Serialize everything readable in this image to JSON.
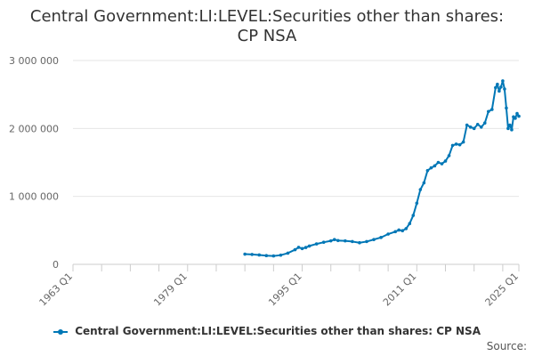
{
  "chart_data": {
    "type": "line",
    "title_line1": "Central Government:LI:LEVEL:Securities other than shares:",
    "title_line2": "CP NSA",
    "xlabel": "",
    "ylabel": "",
    "x_axis_labels": [
      "1963 Q1",
      "1979 Q1",
      "1995 Q1",
      "2011 Q1",
      "2025 Q1"
    ],
    "x_axis_label_years": [
      1963,
      1979,
      1995,
      2011,
      2025
    ],
    "xlim": [
      1963,
      2025.25
    ],
    "ylim": [
      0,
      3000000
    ],
    "y_ticks": [
      0,
      1000000,
      2000000,
      3000000
    ],
    "y_tick_labels": [
      "0",
      "1 000 000",
      "2 000 000",
      "3 000 000"
    ],
    "grid": "horizontal",
    "legend_position": "bottom-center",
    "series": [
      {
        "name": "Central Government:LI:LEVEL:Securities other than shares: CP NSA",
        "color": "#0077b6",
        "points": [
          [
            1987.0,
            150000
          ],
          [
            1988.0,
            145000
          ],
          [
            1989.0,
            138000
          ],
          [
            1990.0,
            128000
          ],
          [
            1991.0,
            123000
          ],
          [
            1992.0,
            135000
          ],
          [
            1993.0,
            165000
          ],
          [
            1994.0,
            215000
          ],
          [
            1994.5,
            250000
          ],
          [
            1995.0,
            232000
          ],
          [
            1995.5,
            248000
          ],
          [
            1996.0,
            270000
          ],
          [
            1997.0,
            300000
          ],
          [
            1998.0,
            325000
          ],
          [
            1999.0,
            345000
          ],
          [
            1999.5,
            365000
          ],
          [
            2000.0,
            350000
          ],
          [
            2001.0,
            345000
          ],
          [
            2002.0,
            335000
          ],
          [
            2003.0,
            318000
          ],
          [
            2004.0,
            335000
          ],
          [
            2005.0,
            365000
          ],
          [
            2006.0,
            395000
          ],
          [
            2007.0,
            445000
          ],
          [
            2008.0,
            480000
          ],
          [
            2008.5,
            505000
          ],
          [
            2009.0,
            495000
          ],
          [
            2009.5,
            525000
          ],
          [
            2010.0,
            600000
          ],
          [
            2010.5,
            720000
          ],
          [
            2011.0,
            900000
          ],
          [
            2011.5,
            1100000
          ],
          [
            2012.0,
            1200000
          ],
          [
            2012.5,
            1380000
          ],
          [
            2013.0,
            1420000
          ],
          [
            2013.5,
            1450000
          ],
          [
            2014.0,
            1500000
          ],
          [
            2014.5,
            1480000
          ],
          [
            2015.0,
            1520000
          ],
          [
            2015.5,
            1600000
          ],
          [
            2016.0,
            1750000
          ],
          [
            2016.5,
            1770000
          ],
          [
            2017.0,
            1760000
          ],
          [
            2017.5,
            1800000
          ],
          [
            2018.0,
            2050000
          ],
          [
            2018.5,
            2020000
          ],
          [
            2019.0,
            2000000
          ],
          [
            2019.5,
            2060000
          ],
          [
            2020.0,
            2020000
          ],
          [
            2020.5,
            2080000
          ],
          [
            2021.0,
            2250000
          ],
          [
            2021.5,
            2280000
          ],
          [
            2022.0,
            2600000
          ],
          [
            2022.25,
            2650000
          ],
          [
            2022.5,
            2550000
          ],
          [
            2022.75,
            2610000
          ],
          [
            2023.0,
            2700000
          ],
          [
            2023.25,
            2580000
          ],
          [
            2023.5,
            2300000
          ],
          [
            2023.75,
            2000000
          ],
          [
            2024.0,
            2050000
          ],
          [
            2024.25,
            1980000
          ],
          [
            2024.5,
            2170000
          ],
          [
            2024.75,
            2150000
          ],
          [
            2025.0,
            2220000
          ],
          [
            2025.25,
            2180000
          ]
        ]
      }
    ]
  },
  "source_label": "Source:"
}
